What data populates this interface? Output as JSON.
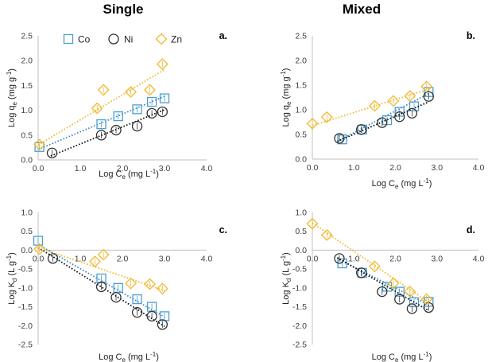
{
  "columns": {
    "single": "Single",
    "mixed": "Mixed"
  },
  "colors": {
    "Co": "#4a9fd1",
    "Ni": "#333333",
    "Zn": "#f2b82e",
    "Co_fit": "#3d8dc2",
    "Ni_fit": "#111111",
    "Zn_fit": "#f2b82e"
  },
  "legend": [
    {
      "name": "Co",
      "marker": "square"
    },
    {
      "name": "Ni",
      "marker": "circle"
    },
    {
      "name": "Zn",
      "marker": "diamond"
    }
  ],
  "chart_data": [
    {
      "id": "a",
      "panel_label": "a.",
      "type": "scatter",
      "xlabel": "Log Ce (mg L-1)",
      "ylabel": "Log qe (mg g-1)",
      "xlim": [
        0.0,
        4.0
      ],
      "ylim": [
        0.0,
        2.5
      ],
      "xticks": [
        "0.0",
        "1.0",
        "2.0",
        "3.0",
        "4.0"
      ],
      "yticks": [
        "0.0",
        "0.5",
        "1.0",
        "1.5",
        "2.0",
        "2.5"
      ],
      "series": [
        {
          "name": "Co",
          "x": [
            0.03,
            1.5,
            1.9,
            2.35,
            2.7,
            3.0
          ],
          "y": [
            0.26,
            0.72,
            0.88,
            1.02,
            1.17,
            1.24
          ],
          "fit": [
            [
              0.0,
              0.21
            ],
            [
              3.0,
              1.28
            ]
          ]
        },
        {
          "name": "Ni",
          "x": [
            0.33,
            1.5,
            1.85,
            2.35,
            2.7,
            2.95
          ],
          "y": [
            0.14,
            0.5,
            0.6,
            0.68,
            0.94,
            0.97
          ],
          "fit": [
            [
              0.3,
              0.08
            ],
            [
              3.0,
              1.01
            ]
          ]
        },
        {
          "name": "Zn",
          "x": [
            0.03,
            1.4,
            1.55,
            2.2,
            2.65,
            2.95
          ],
          "y": [
            0.31,
            1.04,
            1.41,
            1.37,
            1.41,
            1.93
          ],
          "fit": [
            [
              0.0,
              0.3
            ],
            [
              3.0,
              1.82
            ]
          ]
        }
      ]
    },
    {
      "id": "b",
      "panel_label": "b.",
      "type": "scatter",
      "xlabel": "Log Ce (mg L-1)",
      "ylabel": "Log qe (mg g-1)",
      "xlim": [
        0.0,
        4.0
      ],
      "ylim": [
        0.0,
        2.5
      ],
      "xticks": [
        "0.0",
        "1.0",
        "2.0",
        "3.0",
        "4.0"
      ],
      "yticks": [
        "0.0",
        "0.5",
        "1.0",
        "1.5",
        "2.0",
        "2.5"
      ],
      "series": [
        {
          "name": "Co",
          "x": [
            0.72,
            1.2,
            1.8,
            2.1,
            2.45,
            2.8
          ],
          "y": [
            0.4,
            0.6,
            0.79,
            0.96,
            1.07,
            1.36
          ],
          "fit": [
            [
              0.65,
              0.38
            ],
            [
              2.8,
              1.33
            ]
          ]
        },
        {
          "name": "Ni",
          "x": [
            0.65,
            1.18,
            1.68,
            2.1,
            2.4,
            2.8
          ],
          "y": [
            0.42,
            0.6,
            0.74,
            0.86,
            0.93,
            1.27
          ],
          "fit": [
            [
              0.6,
              0.36
            ],
            [
              2.8,
              1.16
            ]
          ]
        },
        {
          "name": "Zn",
          "x": [
            0.0,
            0.35,
            1.5,
            1.95,
            2.35,
            2.75
          ],
          "y": [
            0.72,
            0.85,
            1.08,
            1.18,
            1.28,
            1.47
          ],
          "fit": [
            [
              0.0,
              0.68
            ],
            [
              2.8,
              1.42
            ]
          ]
        }
      ]
    },
    {
      "id": "c",
      "panel_label": "c.",
      "type": "scatter",
      "xlabel": "Log Ce (mg L-1)",
      "ylabel": "Log Kd (L g-1)",
      "xlim": [
        0.0,
        4.0
      ],
      "ylim": [
        -2.5,
        1.0
      ],
      "xticks": [
        "0.0",
        "1.0",
        "2.0",
        "3.0",
        "4.0"
      ],
      "yticks": [
        "1.0",
        "0.5",
        "0.0",
        "-0.5",
        "-1.0",
        "-1.5",
        "-2.0",
        "-2.5"
      ],
      "series": [
        {
          "name": "Co",
          "x": [
            0.0,
            1.5,
            1.9,
            2.35,
            2.7,
            3.0
          ],
          "y": [
            0.25,
            -0.75,
            -1.0,
            -1.3,
            -1.5,
            -1.75
          ],
          "fit": [
            [
              0.0,
              0.15
            ],
            [
              3.0,
              -1.77
            ]
          ]
        },
        {
          "name": "Ni",
          "x": [
            0.35,
            1.5,
            1.85,
            2.35,
            2.7,
            2.95
          ],
          "y": [
            -0.22,
            -0.97,
            -1.25,
            -1.65,
            -1.75,
            -1.97
          ],
          "fit": [
            [
              0.0,
              0.07
            ],
            [
              3.0,
              -2.02
            ]
          ]
        },
        {
          "name": "Zn",
          "x": [
            0.03,
            1.35,
            1.55,
            2.2,
            2.65,
            2.95
          ],
          "y": [
            0.03,
            -0.3,
            -0.12,
            -0.88,
            -0.9,
            -1.02
          ],
          "fit": [
            [
              0.0,
              0.07
            ],
            [
              3.0,
              -1.07
            ]
          ]
        }
      ]
    },
    {
      "id": "d",
      "panel_label": "d.",
      "type": "scatter",
      "xlabel": "Log Ce (mg L-1)",
      "ylabel": "Log Kd (L g-1)",
      "xlim": [
        0.0,
        4.0
      ],
      "ylim": [
        -2.5,
        1.0
      ],
      "xticks": [
        "0.0",
        "1.0",
        "2.0",
        "3.0",
        "4.0"
      ],
      "yticks": [
        "1.0",
        "0.5",
        "0.0",
        "-0.5",
        "-1.0",
        "-1.5",
        "-2.0",
        "-2.5"
      ],
      "series": [
        {
          "name": "Co",
          "x": [
            0.72,
            1.2,
            1.8,
            2.1,
            2.45,
            2.8
          ],
          "y": [
            -0.35,
            -0.6,
            -0.97,
            -1.1,
            -1.38,
            -1.37
          ],
          "fit": [
            [
              0.65,
              -0.25
            ],
            [
              2.8,
              -1.45
            ]
          ]
        },
        {
          "name": "Ni",
          "x": [
            0.65,
            1.18,
            1.68,
            2.1,
            2.4,
            2.8
          ],
          "y": [
            -0.22,
            -0.6,
            -1.1,
            -1.3,
            -1.55,
            -1.52
          ],
          "fit": [
            [
              0.6,
              -0.2
            ],
            [
              2.8,
              -1.6
            ]
          ]
        },
        {
          "name": "Zn",
          "x": [
            0.0,
            0.35,
            1.5,
            1.95,
            2.35,
            2.75
          ],
          "y": [
            0.7,
            0.4,
            -0.43,
            -0.88,
            -1.1,
            -1.3
          ],
          "fit": [
            [
              0.0,
              0.72
            ],
            [
              2.8,
              -1.38
            ]
          ]
        }
      ]
    }
  ]
}
